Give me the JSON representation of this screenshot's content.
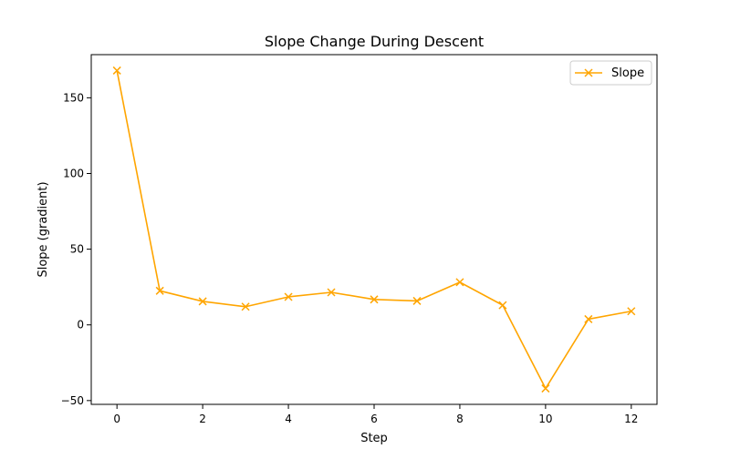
{
  "chart_data": {
    "type": "line",
    "title": "Slope Change During Descent",
    "xlabel": "Step",
    "ylabel": "Slope (gradient)",
    "xlim": [
      -0.6,
      12.6
    ],
    "ylim": [
      -52.5,
      178.5
    ],
    "x_ticks": [
      0,
      2,
      4,
      6,
      8,
      10,
      12
    ],
    "x_tick_labels": [
      "0",
      "2",
      "4",
      "6",
      "8",
      "10",
      "12"
    ],
    "y_ticks": [
      -50,
      0,
      50,
      100,
      150
    ],
    "y_tick_labels": [
      "−50",
      "0",
      "50",
      "100",
      "150"
    ],
    "grid": false,
    "legend_position": "top-right",
    "series": [
      {
        "name": "Slope",
        "color": "#ffa500",
        "marker": "x",
        "x": [
          0,
          1,
          2,
          3,
          4,
          5,
          6,
          7,
          8,
          9,
          10,
          11,
          12
        ],
        "values": [
          168.0,
          22.5,
          15.5,
          12.0,
          18.5,
          21.5,
          16.8,
          15.8,
          28.2,
          13.0,
          -42.0,
          3.8,
          9.0
        ]
      }
    ]
  }
}
